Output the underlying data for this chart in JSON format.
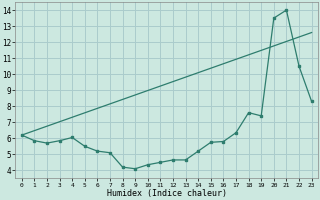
{
  "title": "",
  "xlabel": "Humidex (Indice chaleur)",
  "background_color": "#cce8e0",
  "grid_color": "#aacccc",
  "line_color": "#2e7d6e",
  "xlim": [
    -0.5,
    23.5
  ],
  "ylim": [
    3.5,
    14.5
  ],
  "xticks": [
    0,
    1,
    2,
    3,
    4,
    5,
    6,
    7,
    8,
    9,
    10,
    11,
    12,
    13,
    14,
    15,
    16,
    17,
    18,
    19,
    20,
    21,
    22,
    23
  ],
  "yticks": [
    4,
    5,
    6,
    7,
    8,
    9,
    10,
    11,
    12,
    13,
    14
  ],
  "curve1_x": [
    0,
    1,
    2,
    3,
    4,
    5,
    6,
    7,
    8,
    9,
    10,
    11,
    12,
    13,
    14,
    15,
    16,
    17,
    18,
    19,
    20,
    21,
    22,
    23
  ],
  "curve1_y": [
    6.2,
    5.85,
    5.7,
    5.85,
    6.05,
    5.5,
    5.2,
    5.1,
    4.2,
    4.1,
    4.35,
    4.5,
    4.65,
    4.65,
    5.2,
    5.75,
    5.8,
    6.35,
    7.6,
    7.4,
    13.5,
    14.0,
    10.5,
    8.3
  ],
  "curve2_x": [
    0,
    23
  ],
  "curve2_y": [
    6.2,
    12.6
  ]
}
